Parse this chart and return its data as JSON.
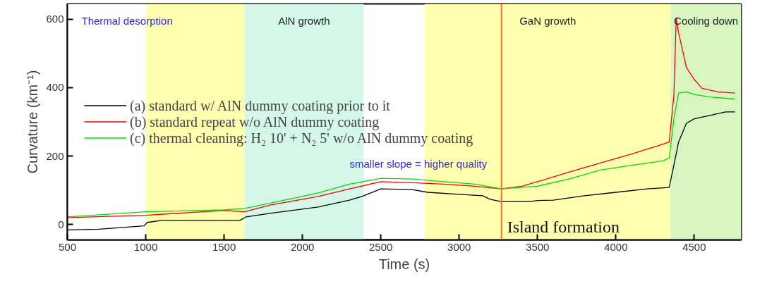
{
  "chart_data": {
    "type": "line",
    "xlabel": "Time (s)",
    "ylabel": "Curvature (km⁻¹)",
    "xlim": [
      500,
      4800
    ],
    "ylim": [
      -45,
      645
    ],
    "xticks": [
      500,
      1000,
      1500,
      2000,
      2500,
      3000,
      3500,
      4000,
      4500
    ],
    "yticks": [
      0,
      200,
      400,
      600
    ],
    "grid": false,
    "legend": "left",
    "series": [
      {
        "name": "(a) standard w/ AlN dummy coating prior to it",
        "color": "#000000",
        "x": [
          500,
          700,
          990,
          1010,
          1100,
          1600,
          1640,
          1800,
          2100,
          2300,
          2380,
          2500,
          2700,
          2800,
          3000,
          3150,
          3200,
          3270,
          3450,
          3500,
          3600,
          3800,
          4000,
          4200,
          4340,
          4370,
          4400,
          4450,
          4500,
          4600,
          4700,
          4760
        ],
        "values": [
          -16,
          -14,
          -4,
          6,
          12,
          12,
          22,
          33,
          51,
          71,
          82,
          104,
          102,
          94,
          88,
          84,
          73,
          67,
          67,
          70,
          71,
          84,
          94,
          104,
          108,
          173,
          241,
          296,
          309,
          319,
          329,
          329
        ]
      },
      {
        "name": "(b) standard repeat w/o AlN dummy coating",
        "color": "#ff0000",
        "x": [
          500,
          1000,
          1500,
          1630,
          1800,
          2100,
          2300,
          2500,
          2700,
          2900,
          3100,
          3270,
          3400,
          3500,
          3700,
          3900,
          4100,
          4300,
          4340,
          4370,
          4385,
          4400,
          4450,
          4500,
          4550,
          4650,
          4760
        ],
        "values": [
          20,
          27,
          41,
          37,
          57,
          82,
          104,
          125,
          122,
          118,
          112,
          104,
          112,
          125,
          153,
          180,
          206,
          235,
          241,
          377,
          604,
          561,
          459,
          424,
          398,
          388,
          384
        ]
      },
      {
        "name": "(c) thermal cleaning: H₂ 10' + N₂ 5' w/o AlN dummy coating",
        "color": "#00e000",
        "x": [
          500,
          1000,
          1500,
          1630,
          1800,
          2100,
          2300,
          2500,
          2700,
          2900,
          3100,
          3270,
          3500,
          3700,
          3900,
          4100,
          4300,
          4340,
          4370,
          4400,
          4450,
          4500,
          4600,
          4700,
          4760
        ],
        "values": [
          22,
          37,
          43,
          47,
          63,
          92,
          118,
          135,
          133,
          125,
          118,
          104,
          112,
          133,
          159,
          173,
          186,
          194,
          309,
          384,
          388,
          380,
          373,
          369,
          367
        ]
      }
    ],
    "bands": [
      {
        "axis": "x",
        "from": 500,
        "to": 1000,
        "label": "Thermal desorption",
        "color": "#ffffff"
      },
      {
        "axis": "x",
        "from": 1000,
        "to": 1630,
        "color": "#ffffb0"
      },
      {
        "axis": "x",
        "from": 1630,
        "to": 2390,
        "label": "AlN growth",
        "color": "#d4f7e8"
      },
      {
        "axis": "x",
        "from": 2780,
        "to": 4350,
        "label": "GaN growth",
        "color": "#ffffb0"
      },
      {
        "axis": "x",
        "from": 4350,
        "to": 4800,
        "label": "Cooling down",
        "color": "#d8f5c0"
      }
    ],
    "ref_lines": [
      {
        "axis": "x",
        "value": 3270,
        "label": "Island formation",
        "color": "#ff7020"
      }
    ],
    "annotations": [
      "smaller slope = higher quality"
    ]
  }
}
